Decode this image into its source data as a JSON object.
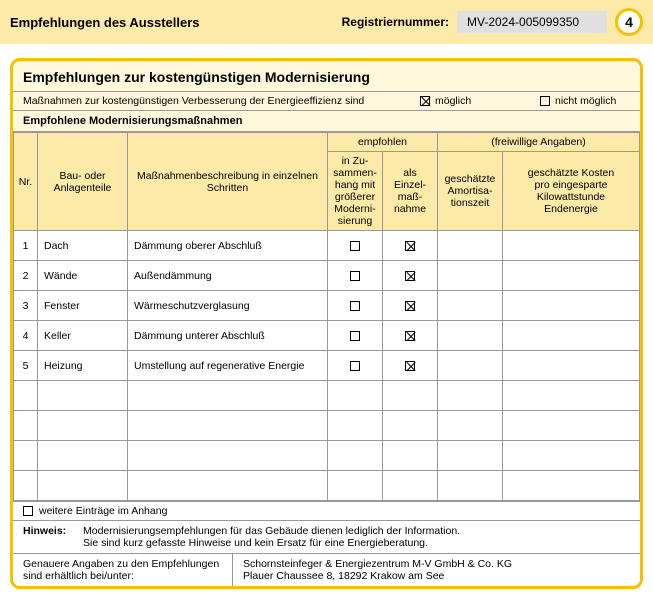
{
  "header": {
    "title": "Empfehlungen des Ausstellers",
    "reg_label": "Registriernummer:",
    "reg_value": "MV-2024-005099350",
    "page": "4"
  },
  "section": {
    "title": "Empfehlungen zur kostengünstigen Modernisierung",
    "feasibility_text": "Maßnahmen zur kostengünstigen Verbesserung der Energieeffizienz sind",
    "opt_possible": "möglich",
    "opt_not_possible": "nicht möglich",
    "feasibility_selected": "possible",
    "subsection": "Empfohlene Modernisierungsmaßnahmen"
  },
  "table": {
    "head": {
      "nr": "Nr.",
      "bau": "Bau- oder Anlagenteile",
      "desc": "Maßnahmenbeschreibung in einzelnen Schritten",
      "group_recommended": "empfohlen",
      "group_optional": "(freiwillige Angaben)",
      "combined": "in Zu-\nsammen-\nhang mit\ngrößerer\nModerni-\nsierung",
      "single": "als\nEinzel-\nmaß-\nnahme",
      "amort": "geschätzte\nAmortisa-\ntionszeit",
      "cost": "geschätzte Kosten\npro eingesparte\nKilowattstunde\nEndenergie"
    },
    "rows": [
      {
        "nr": "1",
        "bau": "Dach",
        "desc": "Dämmung oberer Abschluß",
        "combined": false,
        "single": true,
        "amort": "",
        "cost": ""
      },
      {
        "nr": "2",
        "bau": "Wände",
        "desc": "Außendämmung",
        "combined": false,
        "single": true,
        "amort": "",
        "cost": ""
      },
      {
        "nr": "3",
        "bau": "Fenster",
        "desc": "Wärmeschutzverglasung",
        "combined": false,
        "single": true,
        "amort": "",
        "cost": ""
      },
      {
        "nr": "4",
        "bau": "Keller",
        "desc": "Dämmung unterer Abschluß",
        "combined": false,
        "single": true,
        "amort": "",
        "cost": ""
      },
      {
        "nr": "5",
        "bau": "Heizung",
        "desc": "Umstellung auf regenerative Energie",
        "combined": false,
        "single": true,
        "amort": "",
        "cost": ""
      }
    ],
    "empty_rows": 4
  },
  "anhang": {
    "checked": false,
    "label": "weitere Einträge im Anhang"
  },
  "hinweis": {
    "label": "Hinweis:",
    "line1": "Modernisierungsempfehlungen für das Gebäude dienen lediglich der Information.",
    "line2": "Sie sind kurz gefasste Hinweise und kein Ersatz für eine Energieberatung."
  },
  "contact": {
    "left": "Genauere Angaben zu den Empfehlungen\nsind erhältlich bei/unter:",
    "right": "Schornsteinfeger & Energiezentrum M-V GmbH & Co. KG\nPlauer Chaussee 8, 18292 Krakow am See"
  },
  "colors": {
    "accent": "#f5c100",
    "header_bg": "#fde9a8",
    "section_bg": "#fff8dc",
    "border": "#999999"
  }
}
